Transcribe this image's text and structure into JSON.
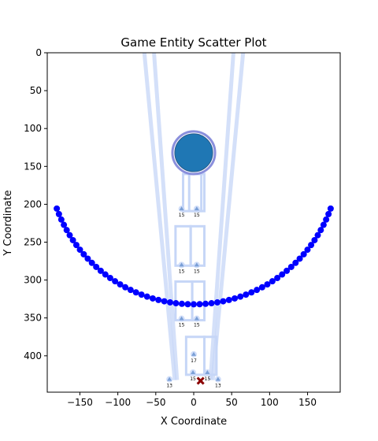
{
  "chart_data": {
    "type": "scatter",
    "title": "Game Entity Scatter Plot",
    "xlabel": "X Coordinate",
    "ylabel": "Y Coordinate",
    "xlim": [
      -193,
      193
    ],
    "ylim": [
      448,
      0
    ],
    "y_inverted": true,
    "grid": false,
    "xticks": [
      -150,
      -100,
      -50,
      0,
      50,
      100,
      150
    ],
    "yticks": [
      0,
      50,
      100,
      150,
      200,
      250,
      300,
      350,
      400
    ],
    "circle_ring": {
      "center": [
        0,
        0
      ],
      "radius": 192,
      "start_deg": 200,
      "end_deg": 340,
      "count": 61,
      "color": "#0000ff"
    },
    "beams": [
      {
        "points": [
          [
            -66,
            -10
          ],
          [
            -25,
            432
          ]
        ]
      },
      {
        "points": [
          [
            -22,
            432
          ],
          [
            -53,
            -10
          ]
        ]
      },
      {
        "points": [
          [
            66,
            -10
          ],
          [
            25,
            432
          ]
        ]
      },
      {
        "points": [
          [
            22,
            432
          ],
          [
            53,
            -10
          ]
        ]
      }
    ],
    "big_circle": {
      "x": 0,
      "y": 132,
      "radius": 26,
      "fill": "#1f77b4",
      "edge": "#8a8fdc"
    },
    "rects": [
      {
        "x0": -14,
        "y0": 160,
        "x1": 10,
        "y1": 209
      },
      {
        "x0": -6,
        "y0": 160,
        "x1": 14,
        "y1": 209
      },
      {
        "x0": -24,
        "y0": 229,
        "x1": -4,
        "y1": 281
      },
      {
        "x0": -4,
        "y0": 229,
        "x1": 14,
        "y1": 281
      },
      {
        "x0": -24,
        "y0": 302,
        "x1": -2,
        "y1": 353
      },
      {
        "x0": -2,
        "y0": 302,
        "x1": 14,
        "y1": 353
      },
      {
        "x0": -10,
        "y0": 375,
        "x1": 14,
        "y1": 425
      },
      {
        "x0": 14,
        "y0": 375,
        "x1": 30,
        "y1": 425
      }
    ],
    "unit_markers": [
      {
        "x": -16,
        "y": 206,
        "label": "15"
      },
      {
        "x": 4,
        "y": 206,
        "label": "15"
      },
      {
        "x": -16,
        "y": 280,
        "label": "15"
      },
      {
        "x": 4,
        "y": 280,
        "label": "15"
      },
      {
        "x": -16,
        "y": 351,
        "label": "15"
      },
      {
        "x": 4,
        "y": 351,
        "label": "15"
      },
      {
        "x": 0,
        "y": 398,
        "label": "17"
      },
      {
        "x": -1,
        "y": 422,
        "label": "15"
      },
      {
        "x": 18,
        "y": 422,
        "label": "15"
      },
      {
        "x": -32,
        "y": 431,
        "label": "13"
      },
      {
        "x": 32,
        "y": 431,
        "label": "13"
      }
    ],
    "target_marker": {
      "x": 9,
      "y": 433,
      "color": "#8b0000"
    }
  }
}
